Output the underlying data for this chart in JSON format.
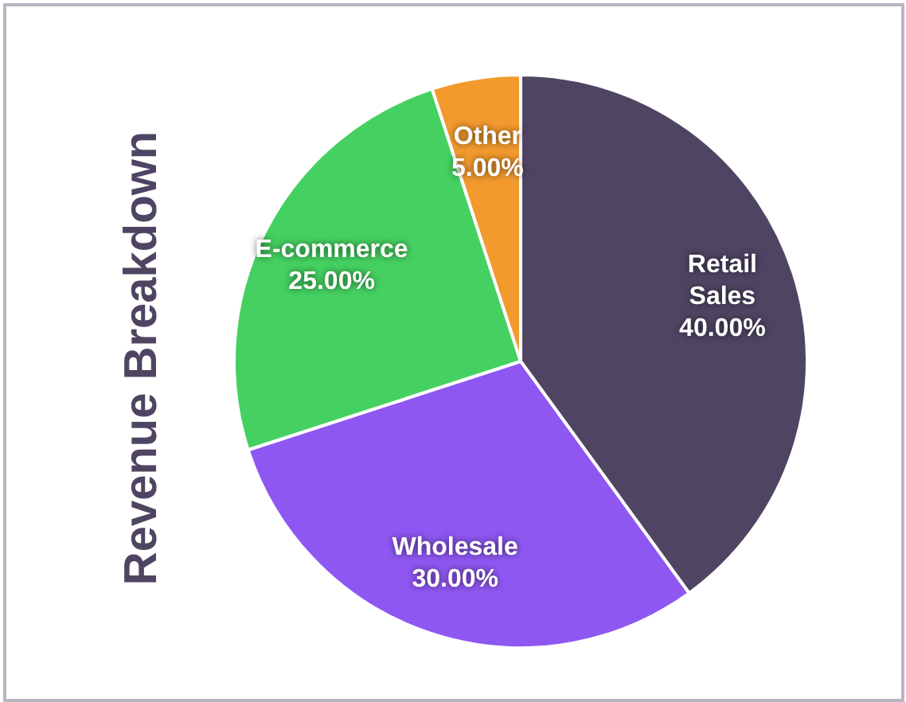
{
  "chart_data": {
    "type": "pie",
    "title": "Revenue Breakdown",
    "categories": [
      "Retail Sales",
      "Wholesale",
      "E-commerce",
      "Other"
    ],
    "values": [
      40,
      30,
      25,
      5
    ],
    "value_labels": [
      "40.00%",
      "30.00%",
      "25.00%",
      "5.00%"
    ],
    "colors": [
      "#4f4563",
      "#8f57f2",
      "#45d161",
      "#f29a2e"
    ],
    "legend": false
  }
}
